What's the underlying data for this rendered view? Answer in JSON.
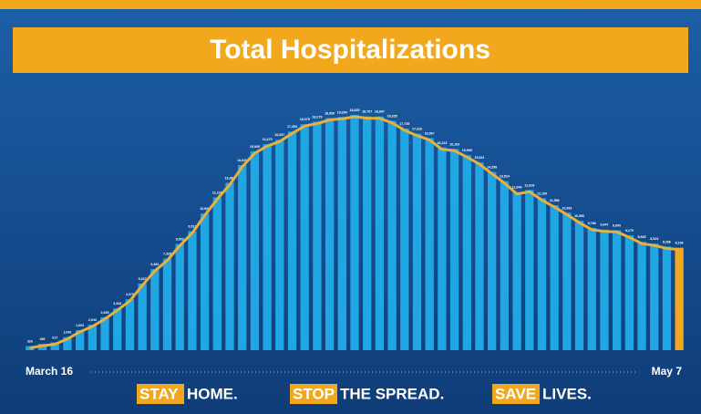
{
  "chart_data": {
    "type": "bar",
    "title": "Total Hospitalizations",
    "categories": [
      "March 16",
      null,
      null,
      null,
      null,
      null,
      null,
      null,
      null,
      null,
      null,
      null,
      null,
      null,
      null,
      null,
      null,
      null,
      null,
      null,
      null,
      null,
      null,
      null,
      null,
      null,
      null,
      null,
      null,
      null,
      null,
      null,
      null,
      null,
      null,
      null,
      null,
      null,
      null,
      null,
      null,
      null,
      null,
      null,
      null,
      null,
      null,
      null,
      null,
      null,
      null,
      null,
      "May 7"
    ],
    "values": [
      326,
      496,
      617,
      1042,
      1603,
      2043,
      2635,
      3343,
      4079,
      5327,
      6481,
      7328,
      8503,
      9517,
      10929,
      12226,
      13383,
      14810,
      15905,
      16479,
      16837,
      17493,
      18079,
      18279,
      18569,
      18654,
      18825,
      18707,
      18697,
      18335,
      17735,
      17316,
      16967,
      16213,
      16103,
      15599,
      15021,
      14258,
      13524,
      12646,
      12819,
      12159,
      11598,
      10993,
      10350,
      9786,
      9647,
      9600,
      9179,
      8665,
      8524,
      8286,
      8196
    ],
    "value_labels": [
      "326",
      "496",
      "617",
      "1,042",
      "1,603",
      "2,043",
      "2,635",
      "3,343",
      "4,079",
      "5,327",
      "6,481",
      "7,328",
      "8,503",
      "9,517",
      "10,929",
      "12,226",
      "13,383",
      "14,810",
      "15,905",
      "16,479",
      "16,837",
      "17,493",
      "18,079",
      "18,279",
      "18,569",
      "18,654",
      "18,825",
      "18,707",
      "18,697",
      "18,335",
      "17,735",
      "17,316",
      "16,967",
      "16,213",
      "16,103",
      "15,599",
      "15,021",
      "14,258",
      "13,524",
      "12,646",
      "12,819",
      "12,159",
      "11,598",
      "10,993",
      "10,350",
      "9,786",
      "9,647",
      "9,600",
      "9,179",
      "8,665",
      "8,524",
      "8,286",
      "8,196"
    ],
    "color": "#1fa6e3",
    "last_color": "#f2a81d",
    "line_color": "#e9b13a",
    "footer": [
      {
        "key": "STAY",
        "rest": "HOME."
      },
      {
        "key": "STOP",
        "rest": "THE SPREAD."
      },
      {
        "key": "SAVE",
        "rest": "LIVES."
      }
    ]
  }
}
